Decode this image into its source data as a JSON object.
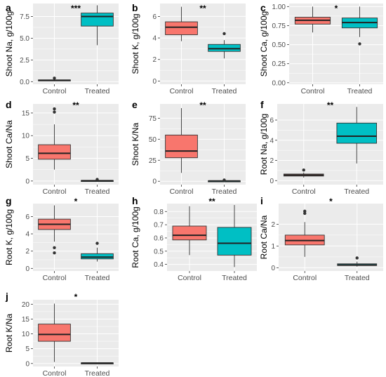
{
  "colors": {
    "control": "#F8766D",
    "treated": "#00BFC4",
    "panel_bg": "#EBEBEB",
    "grid": "#FFFFFF"
  },
  "chart_data": [
    {
      "type": "box",
      "panel": "a",
      "significance": "***",
      "ylabel": "Shoot Na, g/100g",
      "categories": [
        "Control",
        "Treated"
      ],
      "ylim": [
        -0.3,
        9.0
      ],
      "yticks": [
        0.0,
        2.5,
        5.0,
        7.5
      ],
      "ytick_labels": [
        "0.0",
        "2.5",
        "5.0",
        "7.5"
      ],
      "boxes": [
        {
          "min": 0.05,
          "q1": 0.1,
          "median": 0.15,
          "q3": 0.2,
          "max": 0.25,
          "outliers": [
            0.4
          ]
        },
        {
          "min": 4.2,
          "q1": 6.4,
          "median": 7.5,
          "q3": 7.9,
          "max": 8.8,
          "outliers": []
        }
      ]
    },
    {
      "type": "box",
      "panel": "b",
      "significance": "**",
      "ylabel": "Shoot K, g/100g",
      "categories": [
        "Control",
        "Treated"
      ],
      "ylim": [
        -0.3,
        7.2
      ],
      "yticks": [
        0,
        2,
        4,
        6
      ],
      "ytick_labels": [
        "0",
        "2",
        "4",
        "6"
      ],
      "boxes": [
        {
          "min": 3.7,
          "q1": 4.3,
          "median": 5.0,
          "q3": 5.5,
          "max": 6.9,
          "outliers": []
        },
        {
          "min": 2.1,
          "q1": 2.75,
          "median": 3.0,
          "q3": 3.4,
          "max": 3.8,
          "outliers": [
            4.4
          ]
        }
      ]
    },
    {
      "type": "box",
      "panel": "c",
      "significance": "*",
      "ylabel": "Shoot Ca, g/100g",
      "categories": [
        "Control",
        "Treated"
      ],
      "ylim": [
        -0.02,
        1.04
      ],
      "yticks": [
        0.0,
        0.25,
        0.5,
        0.75,
        1.0
      ],
      "ytick_labels": [
        "0.00",
        "0.25",
        "0.50",
        "0.75",
        "1.00"
      ],
      "boxes": [
        {
          "min": 0.66,
          "q1": 0.77,
          "median": 0.82,
          "q3": 0.86,
          "max": 1.0,
          "outliers": []
        },
        {
          "min": 0.6,
          "q1": 0.72,
          "median": 0.79,
          "q3": 0.85,
          "max": 1.0,
          "outliers": [
            0.51
          ]
        }
      ]
    },
    {
      "type": "box",
      "panel": "d",
      "significance": "**",
      "ylabel": "Shoot Ca/Na",
      "categories": [
        "Control",
        "Treated"
      ],
      "ylim": [
        -0.8,
        17.0
      ],
      "yticks": [
        0,
        5,
        10,
        15
      ],
      "ytick_labels": [
        "0",
        "5",
        "10",
        "15"
      ],
      "boxes": [
        {
          "min": 2.5,
          "q1": 4.8,
          "median": 6.1,
          "q3": 8.0,
          "max": 12.5,
          "outliers": [
            15.2,
            15.9
          ]
        },
        {
          "min": 0.02,
          "q1": 0.05,
          "median": 0.08,
          "q3": 0.12,
          "max": 0.2,
          "outliers": [
            0.35
          ]
        }
      ]
    },
    {
      "type": "box",
      "panel": "e",
      "significance": "**",
      "ylabel": "Shoot K/Na",
      "categories": [
        "Control",
        "Treated"
      ],
      "ylim": [
        -4,
        92
      ],
      "yticks": [
        0,
        25,
        50,
        75
      ],
      "ytick_labels": [
        "0",
        "25",
        "50",
        "75"
      ],
      "boxes": [
        {
          "min": 10,
          "q1": 28,
          "median": 36,
          "q3": 55,
          "max": 87,
          "outliers": []
        },
        {
          "min": 0.1,
          "q1": 0.3,
          "median": 0.4,
          "q3": 0.5,
          "max": 0.7,
          "outliers": [
            1.5
          ]
        }
      ]
    },
    {
      "type": "box",
      "panel": "f",
      "significance": "**",
      "ylabel": "Root Na, g/100g",
      "categories": [
        "Control",
        "Treated"
      ],
      "ylim": [
        -0.4,
        7.6
      ],
      "yticks": [
        0,
        2,
        4,
        6
      ],
      "ytick_labels": [
        "0",
        "2",
        "4",
        "6"
      ],
      "boxes": [
        {
          "min": 0.3,
          "q1": 0.45,
          "median": 0.55,
          "q3": 0.65,
          "max": 0.8,
          "outliers": [
            1.05
          ]
        },
        {
          "min": 1.7,
          "q1": 3.7,
          "median": 4.4,
          "q3": 5.7,
          "max": 7.3,
          "outliers": []
        }
      ]
    },
    {
      "type": "box",
      "panel": "g",
      "significance": "*",
      "ylabel": "Root K, g/100g",
      "categories": [
        "Control",
        "Treated"
      ],
      "ylim": [
        -0.3,
        7.5
      ],
      "yticks": [
        0,
        2,
        4,
        6
      ],
      "ytick_labels": [
        "0",
        "2",
        "4",
        "6"
      ],
      "boxes": [
        {
          "min": 3.1,
          "q1": 4.5,
          "median": 5.1,
          "q3": 5.7,
          "max": 7.3,
          "outliers": [
            2.4,
            1.8
          ]
        },
        {
          "min": 0.8,
          "q1": 1.1,
          "median": 1.3,
          "q3": 1.7,
          "max": 2.4,
          "outliers": [
            2.9
          ]
        }
      ]
    },
    {
      "type": "box",
      "panel": "h",
      "significance": "**",
      "ylabel": "Root Ca, g/100g",
      "categories": [
        "Control",
        "Treated"
      ],
      "ylim": [
        0.35,
        0.86
      ],
      "yticks": [
        0.4,
        0.5,
        0.6,
        0.7,
        0.8
      ],
      "ytick_labels": [
        "0.4",
        "0.5",
        "0.6",
        "0.7",
        "0.8"
      ],
      "boxes": [
        {
          "min": 0.47,
          "q1": 0.585,
          "median": 0.62,
          "q3": 0.69,
          "max": 0.84,
          "outliers": []
        },
        {
          "min": 0.38,
          "q1": 0.47,
          "median": 0.56,
          "q3": 0.68,
          "max": 0.85,
          "outliers": []
        }
      ]
    },
    {
      "type": "box",
      "panel": "i",
      "significance": "*",
      "ylabel": "Root Ca/Na",
      "categories": [
        "Control",
        "Treated"
      ],
      "ylim": [
        -0.15,
        2.95
      ],
      "yticks": [
        0,
        1,
        2
      ],
      "ytick_labels": [
        "0",
        "1",
        "2"
      ],
      "boxes": [
        {
          "min": 0.5,
          "q1": 1.05,
          "median": 1.25,
          "q3": 1.5,
          "max": 2.1,
          "outliers": [
            2.5,
            2.6
          ]
        },
        {
          "min": 0.05,
          "q1": 0.1,
          "median": 0.13,
          "q3": 0.18,
          "max": 0.28,
          "outliers": [
            0.45
          ]
        }
      ]
    },
    {
      "type": "box",
      "panel": "j",
      "significance": "*",
      "ylabel": "Root K/Na",
      "categories": [
        "Control",
        "Treated"
      ],
      "ylim": [
        -1,
        21.5
      ],
      "yticks": [
        0,
        5,
        10,
        15,
        20
      ],
      "ytick_labels": [
        "0",
        "5",
        "10",
        "15",
        "20"
      ],
      "boxes": [
        {
          "min": 0.5,
          "q1": 7.5,
          "median": 9.8,
          "q3": 13.3,
          "max": 20.2,
          "outliers": []
        },
        {
          "min": 0.05,
          "q1": 0.1,
          "median": 0.15,
          "q3": 0.2,
          "max": 0.3,
          "outliers": []
        }
      ]
    }
  ]
}
